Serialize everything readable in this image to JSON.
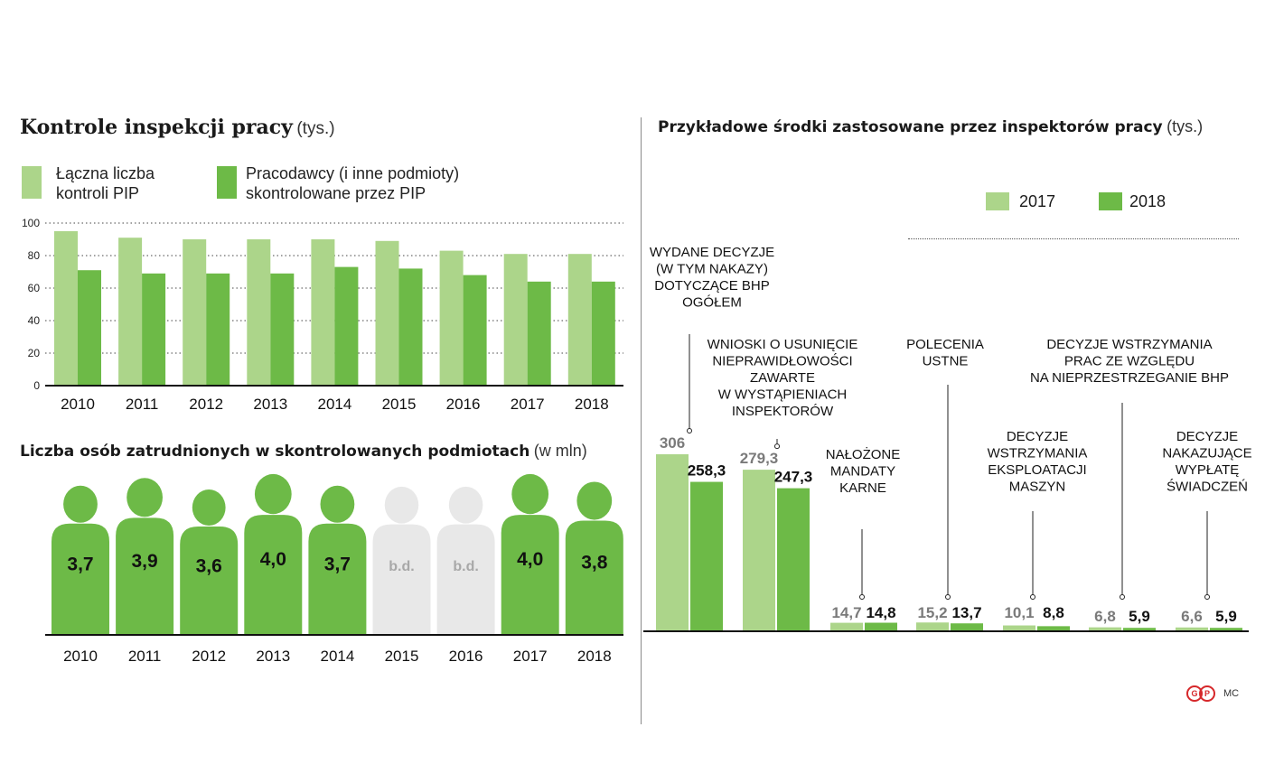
{
  "colors": {
    "light": "#acd58a",
    "dark": "#6dba47",
    "gray": "#e8e8e8",
    "grayText": "#a8a8a8",
    "red": "#d6282b"
  },
  "left_top": {
    "title": "Kontrole inspekcji pracy",
    "unit": "(tys.)",
    "legend": [
      {
        "line1": "Łączna liczba",
        "line2": "kontroli PIP"
      },
      {
        "line1": "Pracodawcy (i inne podmioty)",
        "line2": "skontrolowane przez PIP"
      }
    ]
  },
  "left_bottom": {
    "title": "Liczba osób zatrudnionych w skontrolowanych podmiotach",
    "unit": "(w mln)"
  },
  "right": {
    "title": "Przykładowe środki zastosowane przez inspektorów pracy",
    "unit": "(tys.)",
    "legend": [
      "2017",
      "2018"
    ],
    "credit": "MC",
    "logo_text": "GP"
  },
  "chart_data": [
    {
      "type": "bar",
      "title": "Kontrole inspekcji pracy (tys.)",
      "categories": [
        "2010",
        "2011",
        "2012",
        "2013",
        "2014",
        "2015",
        "2016",
        "2017",
        "2018"
      ],
      "series": [
        {
          "name": "Łączna liczba kontroli PIP",
          "values": [
            95,
            91,
            90,
            90,
            90,
            89,
            83,
            81,
            81
          ]
        },
        {
          "name": "Pracodawcy (i inne podmioty) skontrolowane przez PIP",
          "values": [
            71,
            69,
            69,
            69,
            73,
            72,
            68,
            64,
            64
          ]
        }
      ],
      "yticks": [
        "0",
        "20",
        "40",
        "60",
        "80",
        "100"
      ],
      "ylim": [
        0,
        100
      ],
      "grid": true
    },
    {
      "type": "pictogram",
      "title": "Liczba osób zatrudnionych w skontrolowanych podmiotach (w mln)",
      "categories": [
        "2010",
        "2011",
        "2012",
        "2013",
        "2014",
        "2015",
        "2016",
        "2017",
        "2018"
      ],
      "values": [
        3.7,
        3.9,
        3.6,
        4.0,
        3.7,
        null,
        null,
        4.0,
        3.8
      ],
      "labels": [
        "3,7",
        "3,9",
        "3,6",
        "4,0",
        "3,7",
        "b.d.",
        "b.d.",
        "4,0",
        "3,8"
      ]
    },
    {
      "type": "bar",
      "title": "Przykładowe środki zastosowane przez inspektorów pracy (tys.)",
      "categories": [
        "WYDANE DECYZJE (W TYM NAKAZY) DOTYCZĄCE BHP OGÓŁEM",
        "WNIOSKI O USUNIĘCIE NIEPRAWIDŁOWOŚCI ZAWARTE W WYSTĄPIENIACH INSPEKTORÓW",
        "NAŁOŻONE MANDATY KARNE",
        "POLECENIA USTNE",
        "DECYZJE WSTRZYMANIA EKSPLOATACJI MASZYN",
        "DECYZJE WSTRZYMANIA PRAC ZE WZGLĘDU NA NIEPRZESTRZEGANIE BHP",
        "DECYZJE NAKAZUJĄCE WYPŁATĘ ŚWIADCZEŃ"
      ],
      "category_lines": [
        [
          "WYDANE DECYZJE",
          "(W TYM NAKAZY)",
          "DOTYCZĄCE BHP",
          "OGÓŁEM"
        ],
        [
          "WNIOSKI O USUNIĘCIE",
          "NIEPRAWIDŁOWOŚCI",
          "ZAWARTE",
          "W WYSTĄPIENIACH",
          "INSPEKTORÓW"
        ],
        [
          "NAŁOŻONE",
          "MANDATY",
          "KARNE"
        ],
        [
          "POLECENIA",
          "USTNE"
        ],
        [
          "DECYZJE",
          "WSTRZYMANIA",
          "EKSPLOATACJI",
          "MASZYN"
        ],
        [
          "DECYZJE WSTRZYMANIA",
          "PRAC ZE WZGLĘDU",
          "NA NIEPRZESTRZEGANIE BHP"
        ],
        [
          "DECYZJE",
          "NAKAZUJĄCE",
          "WYPŁATĘ",
          "ŚWIADCZEŃ"
        ]
      ],
      "series": [
        {
          "name": "2017",
          "values": [
            306,
            279.3,
            14.7,
            15.2,
            10.1,
            6.8,
            6.6
          ],
          "labels": [
            "306",
            "279,3",
            "14,7",
            "15,2",
            "10,1",
            "6,8",
            "6,6"
          ]
        },
        {
          "name": "2018",
          "values": [
            258.3,
            247.3,
            14.8,
            13.7,
            8.8,
            5.9,
            5.9
          ],
          "labels": [
            "258,3",
            "247,3",
            "14,8",
            "13,7",
            "8,8",
            "5,9",
            "5,9"
          ]
        }
      ]
    }
  ]
}
